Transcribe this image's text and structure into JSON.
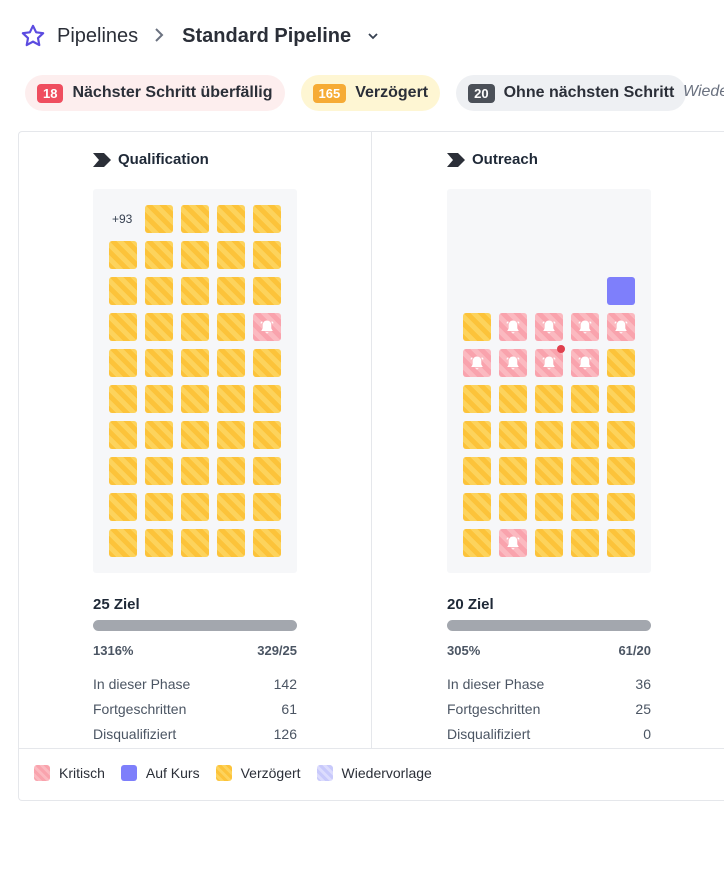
{
  "breadcrumb": {
    "root": "Pipelines",
    "current": "Standard Pipeline"
  },
  "filters": [
    {
      "count": "18",
      "label": "Nächster Schritt überfällig",
      "tone": "red"
    },
    {
      "count": "165",
      "label": "Verzögert",
      "tone": "yellow"
    },
    {
      "count": "20",
      "label": "Ohne nächsten Schritt",
      "tone": "gray"
    }
  ],
  "more_filter": "Wiede",
  "colors": {
    "critical": "#f9a3ad",
    "on_track": "#7e7ffb",
    "delayed": "#fcc33a",
    "follow_up": "#c8c9fb"
  },
  "columns": [
    {
      "title": "Qualification",
      "overflow": "+93",
      "rows": [
        [
          "",
          "d",
          "d",
          "d",
          "d"
        ],
        [
          "d",
          "d",
          "d",
          "d",
          "d"
        ],
        [
          "d",
          "d",
          "d",
          "d",
          "d"
        ],
        [
          "d",
          "d",
          "d",
          "d",
          "c"
        ],
        [
          "d",
          "d",
          "d",
          "d",
          "d"
        ],
        [
          "d",
          "d",
          "d",
          "d",
          "d"
        ],
        [
          "d",
          "d",
          "d",
          "d",
          "d"
        ],
        [
          "d",
          "d",
          "d",
          "d",
          "d"
        ],
        [
          "d",
          "d",
          "d",
          "d",
          "d"
        ],
        [
          "d",
          "d",
          "d",
          "d",
          "d"
        ]
      ],
      "goal": "25 Ziel",
      "progress_percent": 100,
      "percent_label": "1316%",
      "ratio_label": "329/25",
      "stats": [
        {
          "label": "In dieser Phase",
          "value": "142"
        },
        {
          "label": "Fortgeschritten",
          "value": "61"
        },
        {
          "label": "Disqualifiziert",
          "value": "126"
        }
      ]
    },
    {
      "title": "Outreach",
      "overflow": "",
      "rows": [
        [
          "",
          "",
          "",
          "",
          ""
        ],
        [
          "",
          "",
          "",
          "",
          ""
        ],
        [
          "",
          "",
          "",
          "",
          "o"
        ],
        [
          "d",
          "c",
          "c",
          "c",
          "c"
        ],
        [
          "c",
          "c",
          "c!",
          "c",
          "d"
        ],
        [
          "d",
          "d",
          "d",
          "d",
          "d"
        ],
        [
          "d",
          "d",
          "d",
          "d",
          "d"
        ],
        [
          "d",
          "d",
          "d",
          "d",
          "d"
        ],
        [
          "d",
          "d",
          "d",
          "d",
          "d"
        ],
        [
          "d",
          "c",
          "d",
          "d",
          "d"
        ]
      ],
      "goal": "20 Ziel",
      "progress_percent": 100,
      "percent_label": "305%",
      "ratio_label": "61/20",
      "stats": [
        {
          "label": "In dieser Phase",
          "value": "36"
        },
        {
          "label": "Fortgeschritten",
          "value": "25"
        },
        {
          "label": "Disqualifiziert",
          "value": "0"
        }
      ]
    }
  ],
  "legend": [
    {
      "label": "Kritisch",
      "icon": "critical-swatch"
    },
    {
      "label": "Auf Kurs",
      "icon": "on-track-swatch"
    },
    {
      "label": "Verzögert",
      "icon": "delayed-swatch"
    },
    {
      "label": "Wiedervorlage",
      "icon": "follow-up-swatch"
    }
  ]
}
